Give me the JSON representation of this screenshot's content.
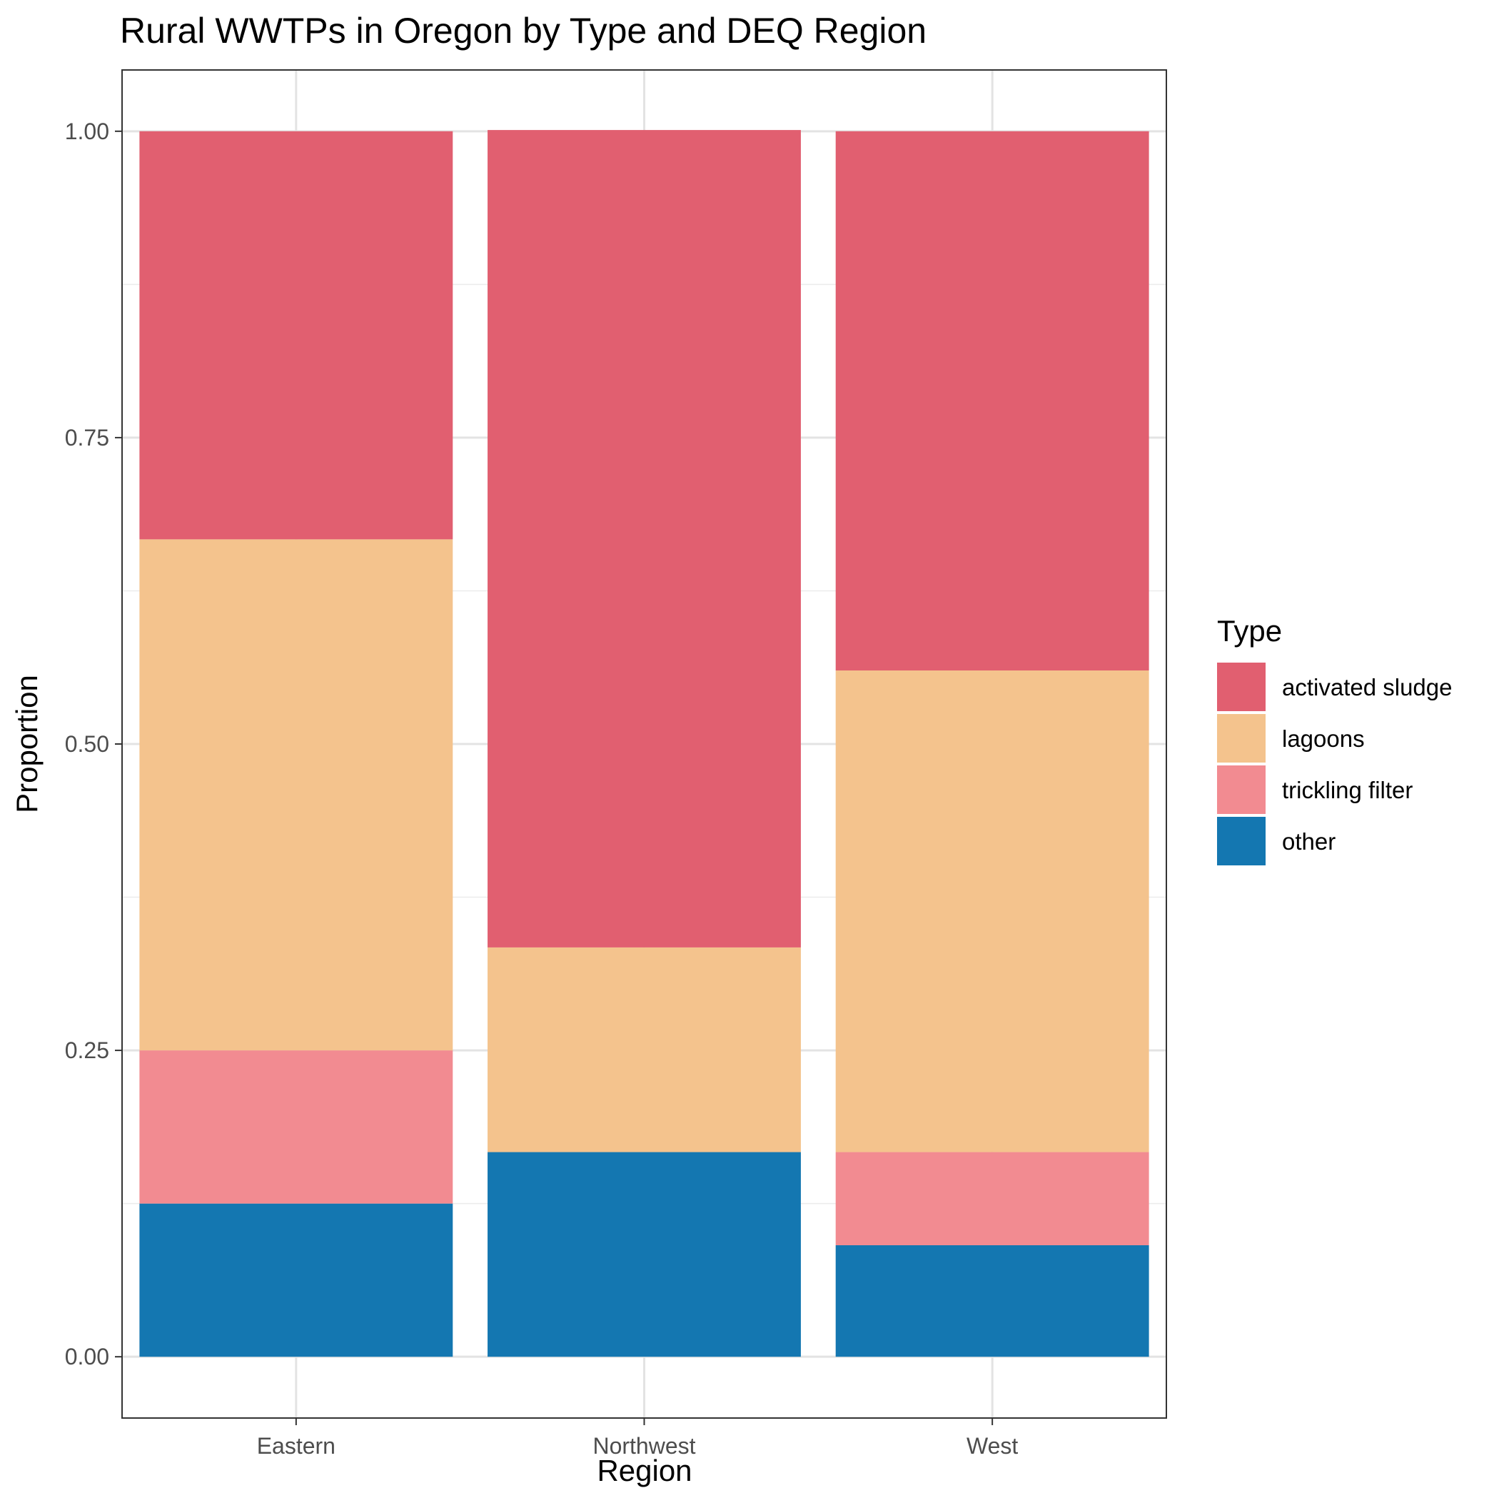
{
  "chart_data": {
    "type": "bar",
    "stacked": true,
    "title": "Rural WWTPs in Oregon by Type and DEQ Region",
    "xlabel": "Region",
    "ylabel": "Proportion",
    "ylim": [
      -0.05,
      1.05
    ],
    "yticks": [
      "0.00",
      "0.25",
      "0.50",
      "0.75",
      "1.00"
    ],
    "grid": true,
    "legend": {
      "title": "Type",
      "placement": "right"
    },
    "categories": [
      "Eastern",
      "Northwest",
      "West"
    ],
    "series": [
      {
        "name": "activated sludge",
        "color": "#E15F70",
        "values": [
          0.333,
          0.667,
          0.44
        ]
      },
      {
        "name": "lagoons",
        "color": "#F4C38D",
        "values": [
          0.417,
          0.167,
          0.393
        ]
      },
      {
        "name": "trickling filter",
        "color": "#F28B91",
        "values": [
          0.125,
          0.0,
          0.076
        ]
      },
      {
        "name": "other",
        "color": "#1477B1",
        "values": [
          0.125,
          0.167,
          0.091
        ]
      }
    ]
  }
}
